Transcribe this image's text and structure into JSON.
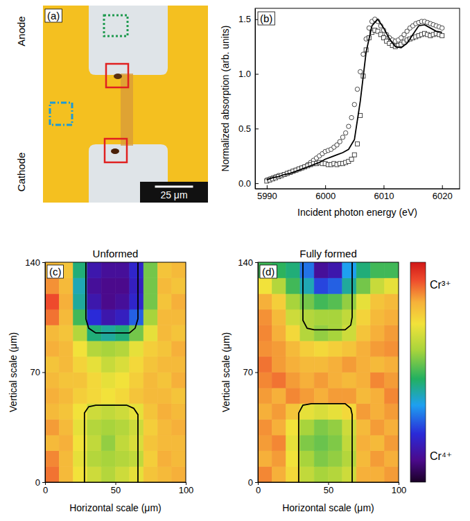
{
  "chart_data": [
    {
      "type": "micrograph",
      "panel_label": "(a)",
      "anode_label": "Anode",
      "cathode_label": "Cathode",
      "scale_bar": {
        "length": 25,
        "label": "25 μm"
      }
    },
    {
      "type": "scatter",
      "panel_label": "(b)",
      "x_label": "Incident photon energy (eV)",
      "y_label": "Normalized absorption (arb. units)",
      "xlim": [
        5988,
        6023
      ],
      "ylim": [
        -0.05,
        1.6
      ],
      "xticks": [
        5990,
        6000,
        6010,
        6020
      ],
      "yticks": [
        {
          "value": 0,
          "label": "0.0"
        },
        {
          "value": 0.5,
          "label": "0.5"
        },
        {
          "value": 1,
          "label": "1.0"
        },
        {
          "value": 1.5,
          "label": "1.5"
        }
      ],
      "series": [
        {
          "type": "scatter",
          "marker": "circle",
          "color": "#333333",
          "x": [
            5990,
            5990.5,
            5991,
            5991.5,
            5992,
            5992.5,
            5993,
            5993.5,
            5994,
            5994.5,
            5995,
            5995.5,
            5996,
            5996.5,
            5997,
            5997.5,
            5998,
            5998.5,
            5999,
            5999.5,
            6000,
            6000.5,
            6001,
            6001.5,
            6002,
            6002.5,
            6003,
            6003.5,
            6004,
            6004.5,
            6005,
            6005.5,
            6006,
            6006.5,
            6007,
            6007.5,
            6008,
            6008.5,
            6009,
            6009.5,
            6010,
            6010.5,
            6011,
            6011.5,
            6012,
            6012.5,
            6013,
            6013.5,
            6014,
            6014.5,
            6015,
            6015.5,
            6016,
            6016.5,
            6017,
            6017.5,
            6018,
            6018.5,
            6019,
            6019.5,
            6020
          ],
          "values": [
            0.03,
            0.04,
            0.05,
            0.06,
            0.07,
            0.07,
            0.08,
            0.09,
            0.1,
            0.11,
            0.12,
            0.13,
            0.14,
            0.15,
            0.17,
            0.19,
            0.21,
            0.23,
            0.25,
            0.27,
            0.29,
            0.3,
            0.31,
            0.33,
            0.35,
            0.38,
            0.42,
            0.46,
            0.52,
            0.6,
            0.72,
            0.86,
            1.02,
            1.18,
            1.32,
            1.42,
            1.48,
            1.5,
            1.48,
            1.44,
            1.4,
            1.36,
            1.33,
            1.31,
            1.3,
            1.31,
            1.33,
            1.36,
            1.39,
            1.42,
            1.44,
            1.46,
            1.47,
            1.48,
            1.48,
            1.47,
            1.46,
            1.45,
            1.44,
            1.43,
            1.42
          ]
        },
        {
          "type": "scatter",
          "marker": "square",
          "color": "#333333",
          "x": [
            5990,
            5990.5,
            5991,
            5991.5,
            5992,
            5992.5,
            5993,
            5993.5,
            5994,
            5994.5,
            5995,
            5995.5,
            5996,
            5996.5,
            5997,
            5997.5,
            5998,
            5998.5,
            5999,
            5999.5,
            6000,
            6000.5,
            6001,
            6001.5,
            6002,
            6002.5,
            6003,
            6003.5,
            6004,
            6004.5,
            6005,
            6005.5,
            6006,
            6006.5,
            6007,
            6007.5,
            6008,
            6008.5,
            6009,
            6009.5,
            6010,
            6010.5,
            6011,
            6011.5,
            6012,
            6012.5,
            6013,
            6013.5,
            6014,
            6014.5,
            6015,
            6015.5,
            6016,
            6016.5,
            6017,
            6017.5,
            6018,
            6018.5,
            6019,
            6019.5,
            6020
          ],
          "values": [
            0.02,
            0.03,
            0.04,
            0.05,
            0.06,
            0.07,
            0.08,
            0.09,
            0.1,
            0.11,
            0.12,
            0.13,
            0.14,
            0.15,
            0.16,
            0.17,
            0.18,
            0.18,
            0.19,
            0.18,
            0.18,
            0.17,
            0.17,
            0.18,
            0.17,
            0.18,
            0.18,
            0.19,
            0.2,
            0.22,
            0.26,
            0.36,
            0.62,
            0.98,
            1.22,
            1.33,
            1.38,
            1.4,
            1.39,
            1.36,
            1.33,
            1.3,
            1.28,
            1.26,
            1.25,
            1.26,
            1.27,
            1.29,
            1.31,
            1.32,
            1.33,
            1.34,
            1.35,
            1.36,
            1.37,
            1.36,
            1.35,
            1.36,
            1.37,
            1.36,
            1.35
          ]
        },
        {
          "type": "line",
          "line_style": "solid",
          "color": "#000000",
          "x": [
            5990,
            5991,
            5992,
            5993,
            5994,
            5995,
            5996,
            5997,
            5998,
            5999,
            6000,
            6001,
            6002,
            6003,
            6004,
            6005,
            6006,
            6007,
            6008,
            6009,
            6010,
            6011,
            6012,
            6013,
            6014,
            6015,
            6016,
            6017,
            6018,
            6019,
            6020
          ],
          "values": [
            0.03,
            0.05,
            0.06,
            0.08,
            0.09,
            0.11,
            0.13,
            0.15,
            0.17,
            0.19,
            0.22,
            0.24,
            0.26,
            0.28,
            0.31,
            0.4,
            0.75,
            1.2,
            1.44,
            1.5,
            1.42,
            1.32,
            1.25,
            1.24,
            1.28,
            1.36,
            1.44,
            1.45,
            1.42,
            1.39,
            1.38
          ]
        }
      ]
    },
    {
      "type": "heatmap",
      "panel_label": "(c)",
      "title": "Unformed",
      "x_label": "Horizontal scale (μm)",
      "y_label": "Vertical scale (μm)",
      "xlim": [
        0,
        100
      ],
      "ylim": [
        0,
        140
      ],
      "xticks": [
        0,
        50,
        100
      ],
      "yticks": [
        0,
        70,
        140
      ],
      "x_edges": [
        0,
        10,
        20,
        30,
        40,
        50,
        60,
        70,
        80,
        90,
        100
      ],
      "y_edges": [
        0,
        10,
        20,
        30,
        40,
        50,
        60,
        70,
        80,
        90,
        100,
        110,
        120,
        130,
        140
      ],
      "z": [
        [
          0.88,
          0.8,
          0.72,
          0.66,
          0.62,
          0.66,
          0.7,
          0.78,
          0.8,
          0.82
        ],
        [
          0.86,
          0.8,
          0.7,
          0.62,
          0.6,
          0.62,
          0.64,
          0.76,
          0.82,
          0.8
        ],
        [
          0.8,
          0.82,
          0.72,
          0.64,
          0.58,
          0.64,
          0.68,
          0.78,
          0.8,
          0.8
        ],
        [
          0.84,
          0.8,
          0.7,
          0.62,
          0.6,
          0.62,
          0.66,
          0.76,
          0.8,
          0.82
        ],
        [
          0.8,
          0.78,
          0.72,
          0.66,
          0.64,
          0.66,
          0.7,
          0.78,
          0.82,
          0.8
        ],
        [
          0.82,
          0.8,
          0.76,
          0.74,
          0.72,
          0.74,
          0.78,
          0.8,
          0.8,
          0.78
        ],
        [
          0.8,
          0.78,
          0.78,
          0.74,
          0.7,
          0.72,
          0.76,
          0.8,
          0.78,
          0.82
        ],
        [
          0.78,
          0.8,
          0.75,
          0.7,
          0.65,
          0.68,
          0.74,
          0.78,
          0.8,
          0.8
        ],
        [
          0.82,
          0.8,
          0.72,
          0.62,
          0.6,
          0.62,
          0.7,
          0.76,
          0.78,
          0.82
        ],
        [
          0.8,
          0.78,
          0.62,
          0.45,
          0.42,
          0.45,
          0.55,
          0.7,
          0.8,
          0.78
        ],
        [
          0.88,
          0.8,
          0.5,
          0.22,
          0.15,
          0.18,
          0.28,
          0.6,
          0.8,
          0.8
        ],
        [
          0.92,
          0.82,
          0.42,
          0.15,
          0.1,
          0.12,
          0.2,
          0.55,
          0.78,
          0.82
        ],
        [
          0.85,
          0.8,
          0.4,
          0.12,
          0.1,
          0.1,
          0.18,
          0.55,
          0.8,
          0.78
        ],
        [
          0.8,
          0.78,
          0.45,
          0.15,
          0.12,
          0.12,
          0.2,
          0.55,
          0.78,
          0.8
        ]
      ],
      "outlines": [
        {
          "x": [
            29,
            29,
            31,
            36,
            60,
            64,
            66,
            66
          ],
          "y": [
            140,
            104,
            98,
            95,
            95,
            98,
            104,
            140
          ]
        },
        {
          "x": [
            28,
            28,
            31,
            36,
            58,
            63,
            66,
            66
          ],
          "y": [
            0,
            44,
            48,
            49,
            49,
            47,
            43,
            0
          ]
        }
      ]
    },
    {
      "type": "heatmap",
      "panel_label": "(d)",
      "title": "Fully formed",
      "x_label": "Horizontal scale (μm)",
      "y_label": "Vertical scale (μm)",
      "xlim": [
        0,
        100
      ],
      "ylim": [
        0,
        140
      ],
      "xticks": [
        0,
        50,
        100
      ],
      "yticks": [
        0,
        70,
        140
      ],
      "x_edges": [
        0,
        10,
        20,
        30,
        40,
        50,
        60,
        70,
        80,
        90,
        100
      ],
      "y_edges": [
        0,
        10,
        20,
        30,
        40,
        50,
        60,
        70,
        80,
        90,
        100,
        110,
        120,
        130,
        140
      ],
      "z": [
        [
          0.86,
          0.82,
          0.74,
          0.64,
          0.6,
          0.62,
          0.66,
          0.82,
          0.82,
          0.84
        ],
        [
          0.82,
          0.84,
          0.72,
          0.6,
          0.56,
          0.58,
          0.62,
          0.8,
          0.84,
          0.82
        ],
        [
          0.84,
          0.86,
          0.7,
          0.56,
          0.54,
          0.56,
          0.64,
          0.82,
          0.8,
          0.84
        ],
        [
          0.85,
          0.82,
          0.72,
          0.6,
          0.56,
          0.58,
          0.66,
          0.8,
          0.84,
          0.82
        ],
        [
          0.82,
          0.84,
          0.78,
          0.7,
          0.68,
          0.7,
          0.74,
          0.84,
          0.82,
          0.84
        ],
        [
          0.84,
          0.82,
          0.86,
          0.84,
          0.82,
          0.84,
          0.84,
          0.8,
          0.82,
          0.86
        ],
        [
          0.86,
          0.88,
          0.84,
          0.82,
          0.84,
          0.82,
          0.8,
          0.82,
          0.86,
          0.84
        ],
        [
          0.88,
          0.84,
          0.82,
          0.8,
          0.8,
          0.82,
          0.84,
          0.82,
          0.8,
          0.82
        ],
        [
          0.85,
          0.84,
          0.8,
          0.76,
          0.74,
          0.76,
          0.78,
          0.82,
          0.84,
          0.85
        ],
        [
          0.86,
          0.82,
          0.74,
          0.62,
          0.58,
          0.6,
          0.66,
          0.78,
          0.82,
          0.84
        ],
        [
          0.85,
          0.8,
          0.66,
          0.62,
          0.6,
          0.6,
          0.64,
          0.75,
          0.8,
          0.82
        ],
        [
          0.82,
          0.76,
          0.6,
          0.55,
          0.5,
          0.52,
          0.58,
          0.7,
          0.78,
          0.8
        ],
        [
          0.72,
          0.62,
          0.5,
          0.4,
          0.25,
          0.28,
          0.42,
          0.55,
          0.65,
          0.7
        ],
        [
          0.5,
          0.48,
          0.45,
          0.3,
          0.12,
          0.15,
          0.35,
          0.45,
          0.5,
          0.5
        ]
      ],
      "outlines": [
        {
          "x": [
            32,
            32,
            35,
            40,
            62,
            66,
            67,
            67
          ],
          "y": [
            140,
            103,
            98,
            97,
            97,
            100,
            105,
            140
          ]
        },
        {
          "x": [
            29,
            29,
            32,
            38,
            62,
            66,
            67,
            67
          ],
          "y": [
            0,
            44,
            49,
            50,
            50,
            47,
            43,
            0
          ]
        }
      ],
      "colorbar": {
        "range": [
          0,
          1
        ],
        "ticks": [
          {
            "value": 0.9,
            "label": "Cr³⁺"
          },
          {
            "value": 0.12,
            "label": "Cr⁴⁺"
          }
        ]
      }
    }
  ]
}
